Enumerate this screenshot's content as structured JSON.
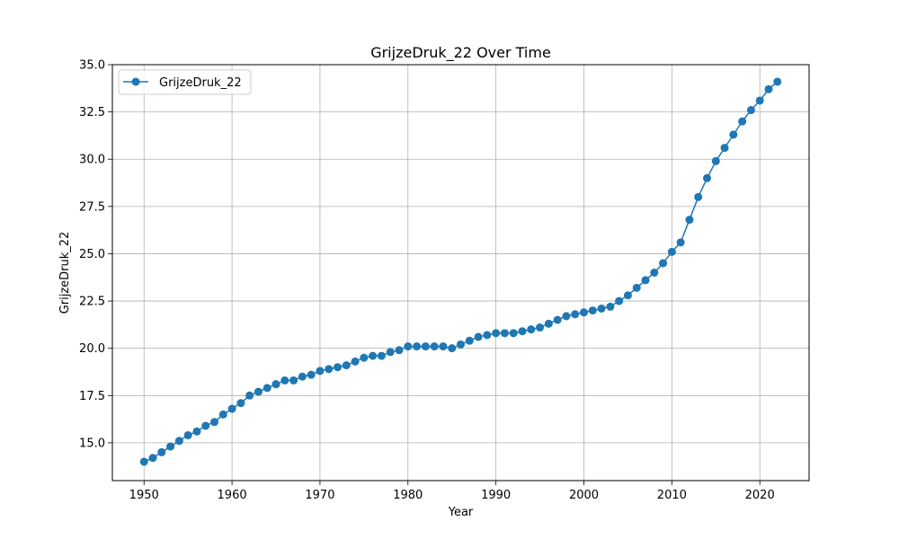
{
  "chart_data": {
    "type": "line",
    "title": "GrijzeDruk_22 Over Time",
    "xlabel": "Year",
    "ylabel": "GrijzeDruk_22",
    "xlim": [
      1946.4,
      2025.6
    ],
    "ylim": [
      13.0,
      35.0
    ],
    "x_ticks": [
      1950,
      1960,
      1970,
      1980,
      1990,
      2000,
      2010,
      2020
    ],
    "y_ticks": [
      15.0,
      17.5,
      20.0,
      22.5,
      25.0,
      27.5,
      30.0,
      32.5,
      35.0
    ],
    "x_tick_labels": [
      "1950",
      "1960",
      "1970",
      "1980",
      "1990",
      "2000",
      "2010",
      "2020"
    ],
    "y_tick_labels": [
      "15.0",
      "17.5",
      "20.0",
      "22.5",
      "25.0",
      "27.5",
      "30.0",
      "32.5",
      "35.0"
    ],
    "grid": true,
    "legend_position": "top-left",
    "series": [
      {
        "name": "GrijzeDruk_22",
        "color": "#1f77b4",
        "marker": "circle",
        "x": [
          1950,
          1951,
          1952,
          1953,
          1954,
          1955,
          1956,
          1957,
          1958,
          1959,
          1960,
          1961,
          1962,
          1963,
          1964,
          1965,
          1966,
          1967,
          1968,
          1969,
          1970,
          1971,
          1972,
          1973,
          1974,
          1975,
          1976,
          1977,
          1978,
          1979,
          1980,
          1981,
          1982,
          1983,
          1984,
          1985,
          1986,
          1987,
          1988,
          1989,
          1990,
          1991,
          1992,
          1993,
          1994,
          1995,
          1996,
          1997,
          1998,
          1999,
          2000,
          2001,
          2002,
          2003,
          2004,
          2005,
          2006,
          2007,
          2008,
          2009,
          2010,
          2011,
          2012,
          2013,
          2014,
          2015,
          2016,
          2017,
          2018,
          2019,
          2020,
          2021,
          2022
        ],
        "y": [
          14.0,
          14.2,
          14.5,
          14.8,
          15.1,
          15.4,
          15.6,
          15.9,
          16.1,
          16.5,
          16.8,
          17.1,
          17.5,
          17.7,
          17.9,
          18.1,
          18.3,
          18.3,
          18.5,
          18.6,
          18.8,
          18.9,
          19.0,
          19.1,
          19.3,
          19.5,
          19.6,
          19.6,
          19.8,
          19.9,
          20.1,
          20.1,
          20.1,
          20.1,
          20.1,
          20.0,
          20.2,
          20.4,
          20.6,
          20.7,
          20.8,
          20.8,
          20.8,
          20.9,
          21.0,
          21.1,
          21.3,
          21.5,
          21.7,
          21.8,
          21.9,
          22.0,
          22.1,
          22.2,
          22.5,
          22.8,
          23.2,
          23.6,
          24.0,
          24.5,
          25.1,
          25.6,
          26.8,
          28.0,
          29.0,
          29.9,
          30.6,
          31.3,
          32.0,
          32.6,
          33.1,
          33.7,
          34.1
        ]
      }
    ]
  }
}
